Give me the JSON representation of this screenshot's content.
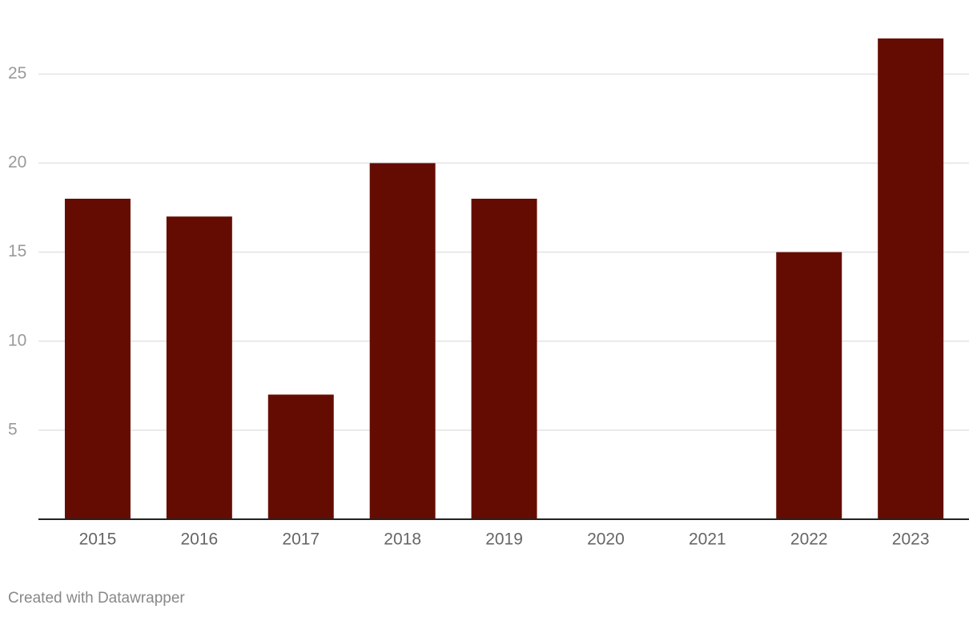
{
  "chart_data": {
    "type": "bar",
    "categories": [
      "2015",
      "2016",
      "2017",
      "2018",
      "2019",
      "2020",
      "2021",
      "2022",
      "2023"
    ],
    "values": [
      18,
      17,
      7,
      20,
      18,
      0,
      0,
      15,
      27
    ],
    "color": "#650c02",
    "ylim": [
      0,
      27
    ],
    "yticks": [
      5,
      10,
      15,
      20,
      25
    ],
    "grid": true,
    "footer": "Created with Datawrapper"
  }
}
